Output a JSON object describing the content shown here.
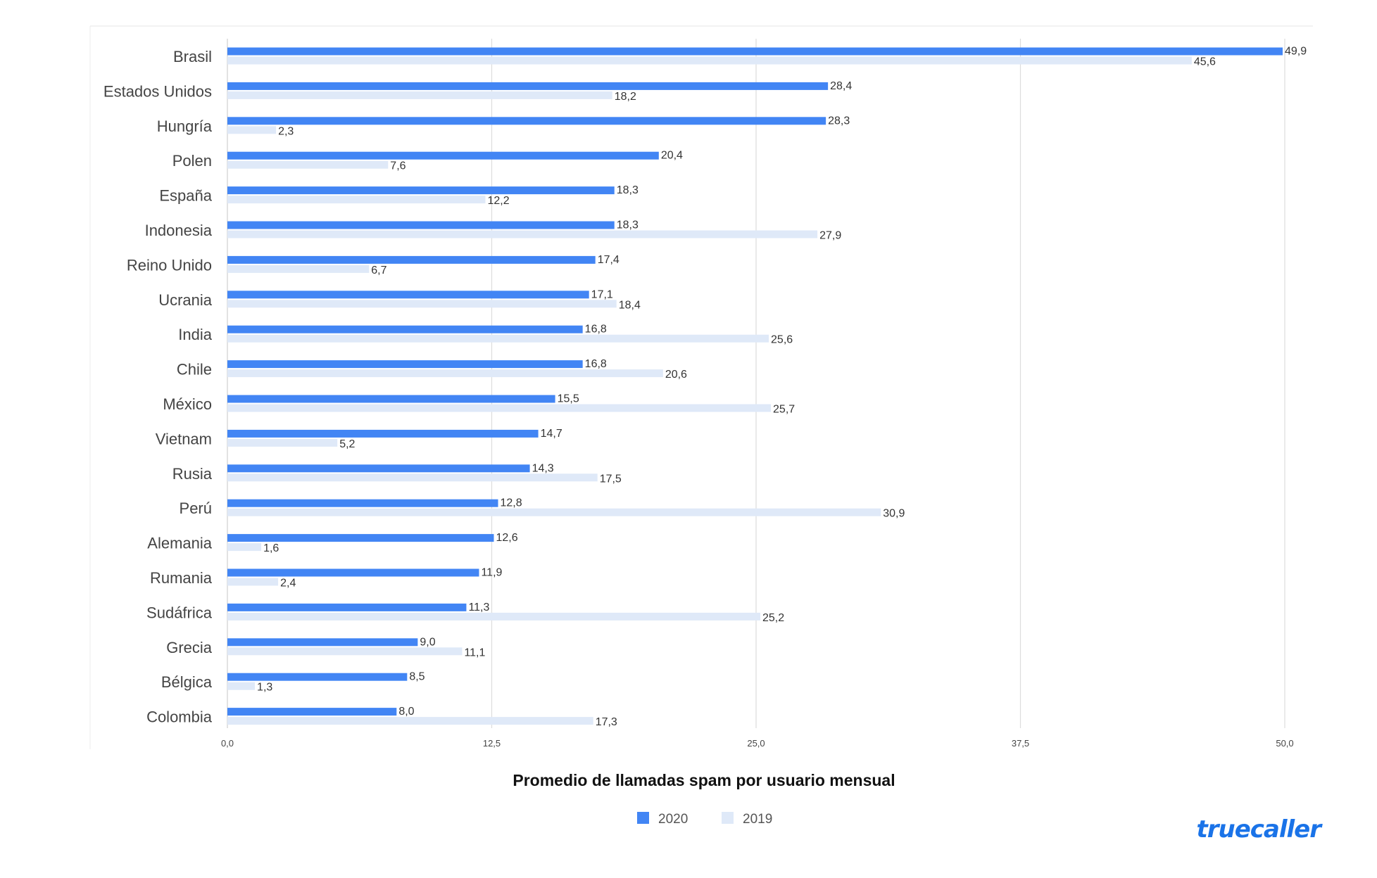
{
  "brand": {
    "logo_text": "truecaller",
    "logo_color": "#1a73e8"
  },
  "chart_data": {
    "type": "bar",
    "orientation": "horizontal",
    "categories": [
      "Brasil",
      "Estados Unidos",
      "Hungría",
      "Polen",
      "España",
      "Indonesia",
      "Reino Unido",
      "Ucrania",
      "India",
      "Chile",
      "México",
      "Vietnam",
      "Rusia",
      "Perú",
      "Alemania",
      "Rumania",
      "Sudáfrica",
      "Grecia",
      "Bélgica",
      "Colombia"
    ],
    "series": [
      {
        "name": "2020",
        "color": "#4285f4",
        "values": [
          49.9,
          28.4,
          28.3,
          20.4,
          18.3,
          18.3,
          17.4,
          17.1,
          16.8,
          16.8,
          15.5,
          14.7,
          14.3,
          12.8,
          12.6,
          11.9,
          11.3,
          9.0,
          8.5,
          8.0
        ],
        "labels": [
          "49,9",
          "28,4",
          "28,3",
          "20,4",
          "18,3",
          "18,3",
          "17,4",
          "17,1",
          "16,8",
          "16,8",
          "15,5",
          "14,7",
          "14,3",
          "12,8",
          "12,6",
          "11,9",
          "11,3",
          "9,0",
          "8,5",
          "8,0"
        ]
      },
      {
        "name": "2019",
        "color": "#dfe9f8",
        "values": [
          45.6,
          18.2,
          2.3,
          7.6,
          12.2,
          27.9,
          6.7,
          18.4,
          25.6,
          20.6,
          25.7,
          5.2,
          17.5,
          30.9,
          1.6,
          2.4,
          25.2,
          11.1,
          1.3,
          17.3
        ],
        "labels": [
          "45,6",
          "18,2",
          "2,3",
          "7,6",
          "12,2",
          "27,9",
          "6,7",
          "18,4",
          "25,6",
          "20,6",
          "25,7",
          "5,2",
          "17,5",
          "30,9",
          "1,6",
          "2,4",
          "25,2",
          "11,1",
          "1,3",
          "17,3"
        ]
      }
    ],
    "xlim": [
      0,
      50
    ],
    "xticks": [
      0,
      12.5,
      25,
      37.5,
      50
    ],
    "xtick_labels": [
      "0,0",
      "12,5",
      "25,0",
      "37,5",
      "50,0"
    ],
    "xlabel": "Promedio de llamadas spam por usuario mensual",
    "ylabel": "",
    "title": "",
    "grid": true,
    "legend": {
      "position": "bottom-center"
    }
  }
}
